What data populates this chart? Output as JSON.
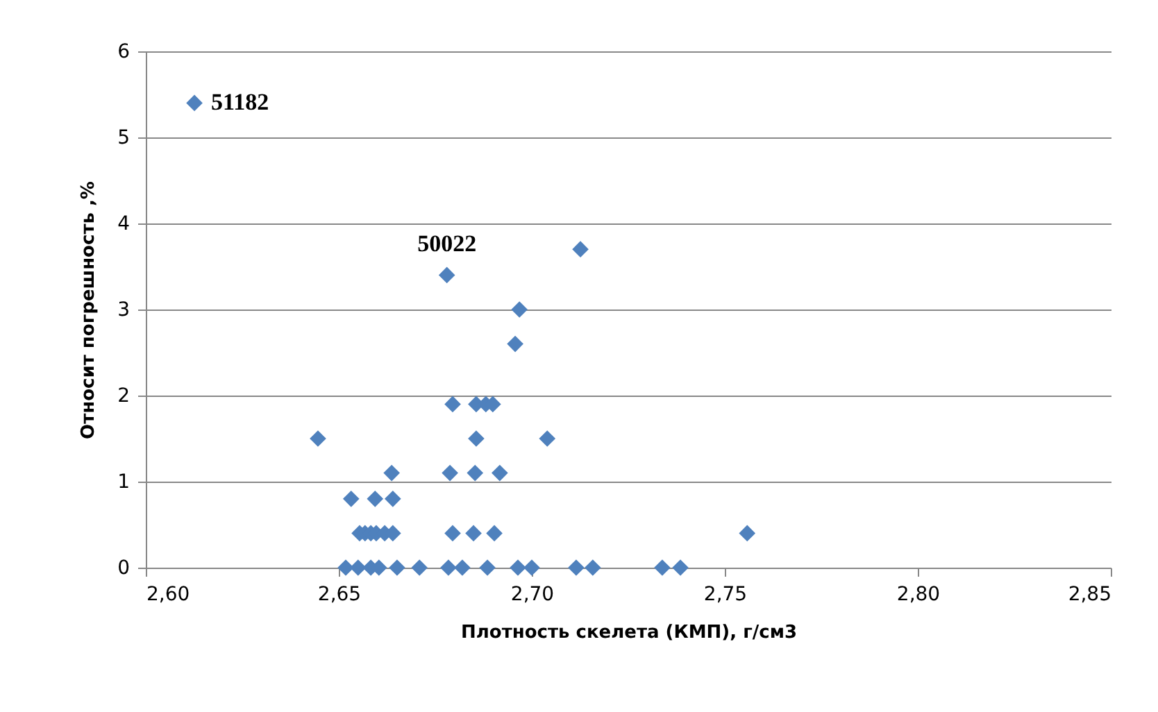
{
  "chart_data": {
    "type": "scatter",
    "xlabel": "Плотность  скелета (КМП), г/см3",
    "ylabel": "Относит погрешность ,%",
    "xlim": [
      2.6,
      2.85
    ],
    "xticks": [
      {
        "value": 2.6,
        "label": "2,60"
      },
      {
        "value": 2.65,
        "label": "2,65"
      },
      {
        "value": 2.7,
        "label": "2,70"
      },
      {
        "value": 2.75,
        "label": "2,75"
      },
      {
        "value": 2.8,
        "label": "2,80"
      },
      {
        "value": 2.85,
        "label": "2,85"
      }
    ],
    "ylim": [
      0,
      6
    ],
    "yticks": [
      0,
      1,
      2,
      3,
      4,
      5,
      6
    ],
    "grid": "y",
    "marker": "diamond",
    "series": [
      {
        "color": "#4f81bd",
        "x": [
          2.6126,
          2.678,
          2.7126,
          2.6968,
          2.6957,
          2.6795,
          2.6856,
          2.6881,
          2.6899,
          2.6446,
          2.6856,
          2.704,
          2.6637,
          2.6788,
          2.6853,
          2.6917,
          2.6532,
          2.6594,
          2.664,
          2.6554,
          2.6568,
          2.6583,
          2.6597,
          2.6619,
          2.664,
          2.6795,
          2.6849,
          2.6903,
          2.7558,
          2.6518,
          2.655,
          2.6583,
          2.6604,
          2.6651,
          2.6709,
          2.6784,
          2.682,
          2.6885,
          2.6964,
          2.7,
          2.7115,
          2.7158,
          2.7338,
          2.7385
        ],
        "values": [
          5.4,
          3.4,
          3.7,
          3.0,
          2.6,
          1.9,
          1.9,
          1.9,
          1.9,
          1.5,
          1.5,
          1.5,
          1.1,
          1.1,
          1.1,
          1.1,
          0.8,
          0.8,
          0.8,
          0.4,
          0.4,
          0.4,
          0.4,
          0.4,
          0.4,
          0.4,
          0.4,
          0.4,
          0.4,
          0,
          0,
          0,
          0,
          0,
          0,
          0,
          0,
          0,
          0,
          0,
          0,
          0,
          0,
          0
        ]
      }
    ],
    "annotations": [
      {
        "text": "51182",
        "x": 2.6126,
        "y": 5.4
      },
      {
        "text": "50022",
        "x": 2.678,
        "y": 3.4
      }
    ]
  }
}
